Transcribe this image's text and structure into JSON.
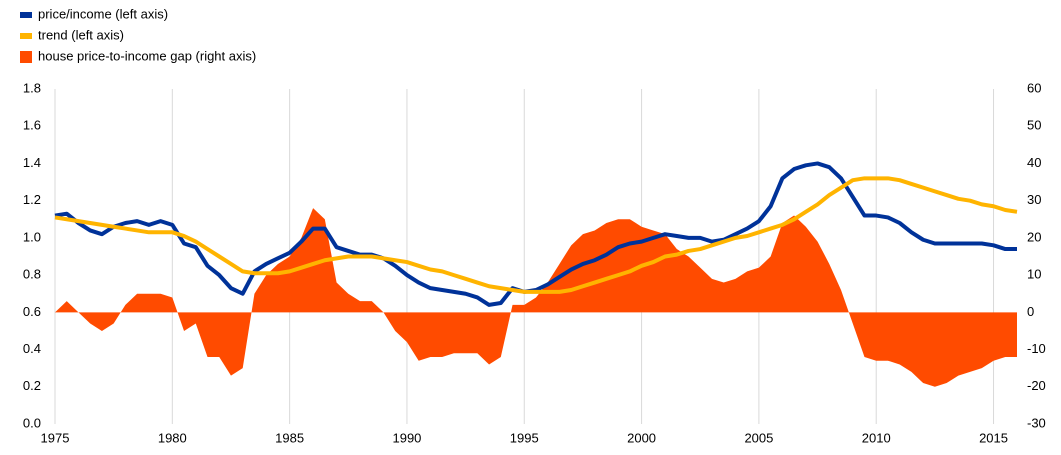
{
  "chart_data": {
    "type": "line",
    "x": [
      1975,
      1975.5,
      1976,
      1976.5,
      1977,
      1977.5,
      1978,
      1978.5,
      1979,
      1979.5,
      1980,
      1980.5,
      1981,
      1981.5,
      1982,
      1982.5,
      1983,
      1983.5,
      1984,
      1984.5,
      1985,
      1985.5,
      1986,
      1986.5,
      1987,
      1987.5,
      1988,
      1988.5,
      1989,
      1989.5,
      1990,
      1990.5,
      1991,
      1991.5,
      1992,
      1992.5,
      1993,
      1993.5,
      1994,
      1994.5,
      1995,
      1995.5,
      1996,
      1996.5,
      1997,
      1997.5,
      1998,
      1998.5,
      1999,
      1999.5,
      2000,
      2000.5,
      2001,
      2001.5,
      2002,
      2002.5,
      2003,
      2003.5,
      2004,
      2004.5,
      2005,
      2005.5,
      2006,
      2006.5,
      2007,
      2007.5,
      2008,
      2008.5,
      2009,
      2009.5,
      2010,
      2010.5,
      2011,
      2011.5,
      2012,
      2012.5,
      2013,
      2013.5,
      2014,
      2014.5,
      2015,
      2015.5,
      2016
    ],
    "series": [
      {
        "name": "house price-to-income gap (right axis)",
        "color": "#ff4b00",
        "kind": "area",
        "axis": "y2",
        "values": [
          0,
          3,
          0,
          -3,
          -5,
          -3,
          2,
          5,
          5,
          5,
          4,
          -5,
          -3,
          -12,
          -12,
          -17,
          -15,
          5,
          10,
          13,
          15,
          20,
          28,
          25,
          8,
          5,
          3,
          3,
          0,
          -5,
          -8,
          -13,
          -12,
          -12,
          -11,
          -11,
          -11,
          -14,
          -12,
          2,
          2,
          4,
          8,
          13,
          18,
          21,
          22,
          24,
          25,
          25,
          23,
          22,
          21,
          17,
          15,
          12,
          9,
          8,
          9,
          11,
          12,
          15,
          24,
          26,
          23,
          19,
          13,
          6,
          -3,
          -12,
          -13,
          -13,
          -14,
          -16,
          -19,
          -20,
          -19,
          -17,
          -16,
          -15,
          -13,
          -12,
          -12
        ]
      },
      {
        "name": "price/income (left axis)",
        "color": "#003299",
        "kind": "line",
        "values": [
          1.12,
          1.13,
          1.08,
          1.04,
          1.02,
          1.06,
          1.08,
          1.09,
          1.07,
          1.09,
          1.07,
          0.97,
          0.95,
          0.85,
          0.8,
          0.73,
          0.7,
          0.82,
          0.86,
          0.89,
          0.92,
          0.98,
          1.05,
          1.05,
          0.95,
          0.93,
          0.91,
          0.91,
          0.89,
          0.85,
          0.8,
          0.76,
          0.73,
          0.72,
          0.71,
          0.7,
          0.68,
          0.64,
          0.65,
          0.73,
          0.71,
          0.72,
          0.75,
          0.79,
          0.83,
          0.86,
          0.88,
          0.91,
          0.95,
          0.97,
          0.98,
          1.0,
          1.02,
          1.01,
          1.0,
          1.0,
          0.98,
          0.99,
          1.02,
          1.05,
          1.09,
          1.17,
          1.32,
          1.37,
          1.39,
          1.4,
          1.38,
          1.32,
          1.22,
          1.12,
          1.12,
          1.11,
          1.08,
          1.03,
          0.99,
          0.97,
          0.97,
          0.97,
          0.97,
          0.97,
          0.96,
          0.94,
          0.94
        ]
      },
      {
        "name": "trend (left axis)",
        "color": "#ffb400",
        "kind": "line",
        "values": [
          1.11,
          1.1,
          1.09,
          1.08,
          1.07,
          1.06,
          1.05,
          1.04,
          1.03,
          1.03,
          1.03,
          1.01,
          0.98,
          0.94,
          0.9,
          0.86,
          0.82,
          0.81,
          0.81,
          0.81,
          0.82,
          0.84,
          0.86,
          0.88,
          0.89,
          0.9,
          0.9,
          0.9,
          0.89,
          0.88,
          0.87,
          0.85,
          0.83,
          0.82,
          0.8,
          0.78,
          0.76,
          0.74,
          0.73,
          0.72,
          0.71,
          0.71,
          0.71,
          0.71,
          0.72,
          0.74,
          0.76,
          0.78,
          0.8,
          0.82,
          0.85,
          0.87,
          0.9,
          0.91,
          0.93,
          0.94,
          0.96,
          0.98,
          1.0,
          1.01,
          1.03,
          1.05,
          1.07,
          1.1,
          1.14,
          1.18,
          1.23,
          1.27,
          1.31,
          1.32,
          1.32,
          1.32,
          1.31,
          1.29,
          1.27,
          1.25,
          1.23,
          1.21,
          1.2,
          1.18,
          1.17,
          1.15,
          1.14
        ]
      }
    ],
    "legend_order": [
      1,
      2,
      0
    ],
    "xlim": [
      1975,
      2016
    ],
    "xticks": [
      1975,
      1980,
      1985,
      1990,
      1995,
      2000,
      2005,
      2010,
      2015
    ],
    "ylim": [
      0,
      1.8
    ],
    "yticks": [
      {
        "value": 0,
        "label": "0.0"
      },
      {
        "value": 0.2,
        "label": "0.2"
      },
      {
        "value": 0.4,
        "label": "0.4"
      },
      {
        "value": 0.6,
        "label": "0.6"
      },
      {
        "value": 0.8,
        "label": "0.8"
      },
      {
        "value": 1,
        "label": "1.0"
      },
      {
        "value": 1.2,
        "label": "1.2"
      },
      {
        "value": 1.4,
        "label": "1.4"
      },
      {
        "value": 1.6,
        "label": "1.6"
      },
      {
        "value": 1.8,
        "label": "1.8"
      }
    ],
    "y2lim": [
      -30,
      60
    ],
    "y2ticks": [
      -30,
      -20,
      -10,
      0,
      10,
      20,
      30,
      40,
      50,
      60
    ],
    "grid": "x"
  }
}
